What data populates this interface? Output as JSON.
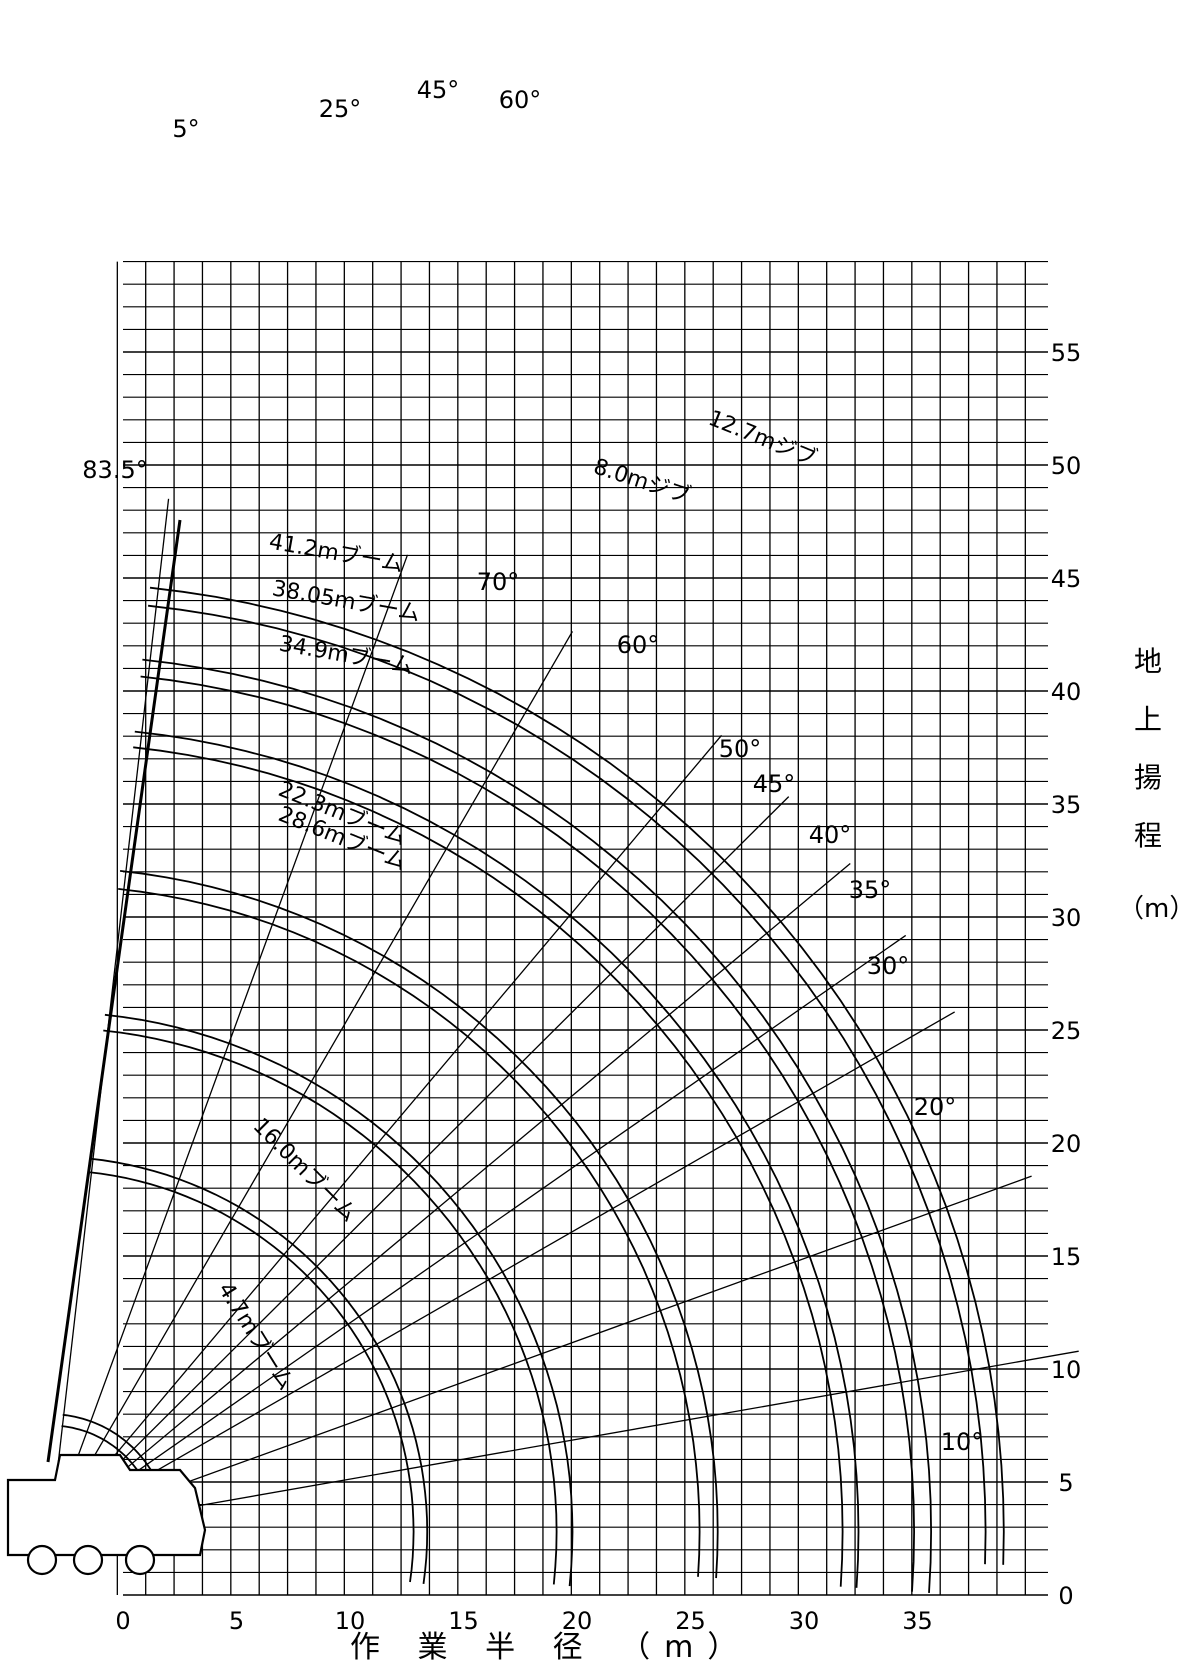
{
  "x_axis": {
    "title": "作 業 半 径 （m）",
    "ticks": [
      "0",
      "5",
      "10",
      "15",
      "20",
      "25",
      "30",
      "35"
    ],
    "range": [
      0,
      40
    ]
  },
  "y_axis": {
    "title_chars": [
      "地",
      "上",
      "揚",
      "程"
    ],
    "unit": "（m）",
    "ticks": [
      "0",
      "5",
      "10",
      "15",
      "20",
      "25",
      "30",
      "35",
      "40",
      "45",
      "50",
      "55"
    ],
    "range": [
      0,
      59
    ]
  },
  "boom_angle_labels": [
    "10°",
    "20°",
    "30°",
    "35°",
    "40°",
    "45°",
    "50°",
    "60°",
    "70°",
    "83.5°"
  ],
  "jib_offset_labels": [
    "5°",
    "25°",
    "45°",
    "60°"
  ],
  "boom_length_labels": [
    "4.7mブーム",
    "16.0mブーム",
    "22.3mブーム",
    "28.6mブーム",
    "34.9mブーム",
    "38.05mブーム",
    "41.2mブーム"
  ],
  "jib_length_labels": [
    "8.0mジブ",
    "12.7mジブ"
  ],
  "chart_data": {
    "type": "crane-working-range",
    "boom_lengths_m": [
      4.7,
      16.0,
      22.3,
      28.6,
      34.9,
      38.05,
      41.2
    ],
    "jib_lengths_m": [
      8.0,
      12.7
    ],
    "boom_angles_deg": [
      10,
      20,
      30,
      35,
      40,
      45,
      50,
      60,
      70,
      83.5
    ],
    "jib_offsets_deg": [
      5,
      25,
      45,
      60
    ],
    "xlim": [
      0,
      40
    ],
    "ylim": [
      0,
      59
    ]
  }
}
